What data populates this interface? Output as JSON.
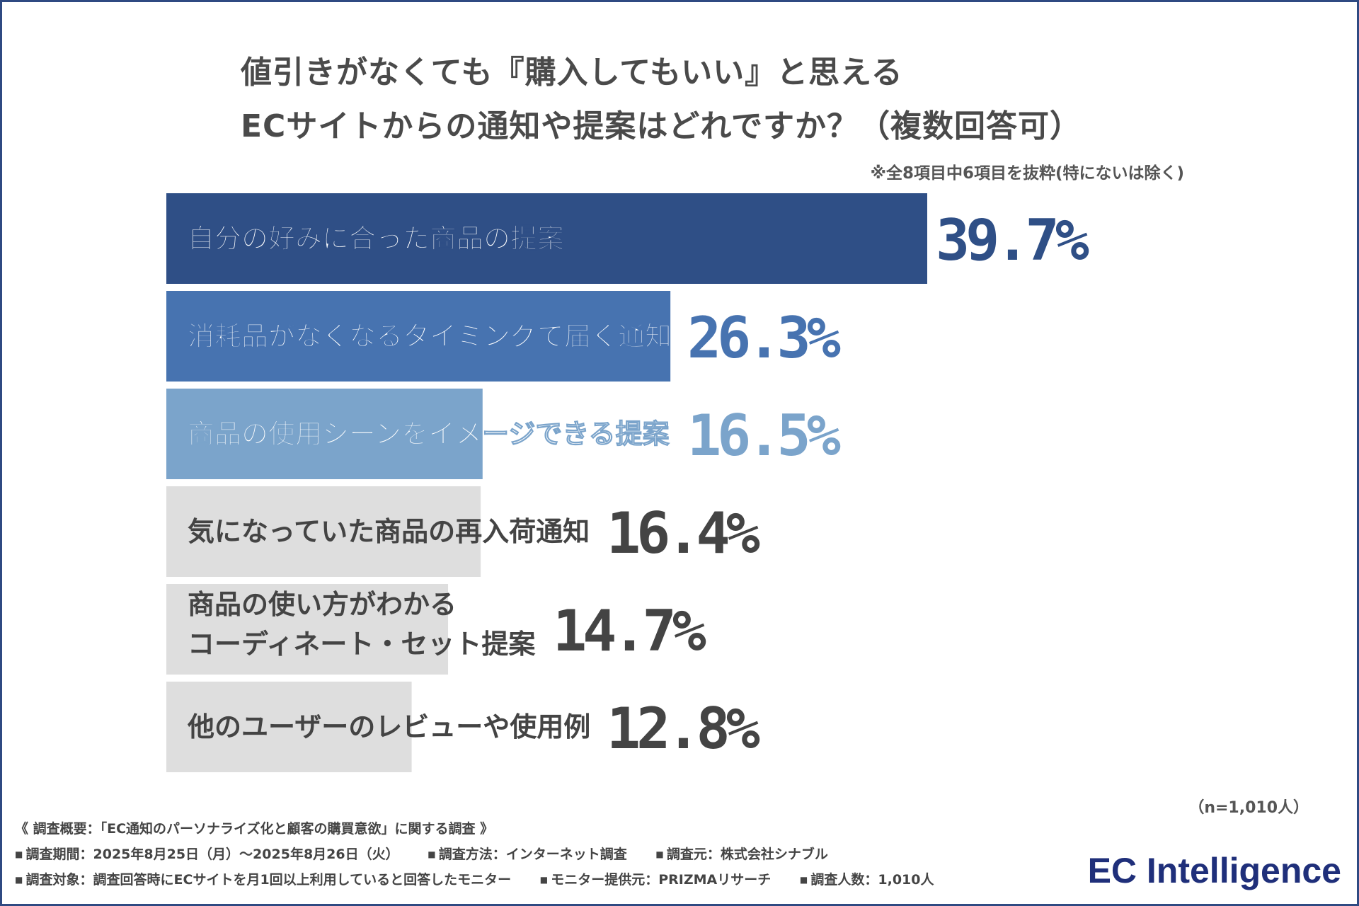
{
  "title_lines": [
    "値引きがなくても『購入してもいい』と思える",
    "ECサイトからの通知や提案はどれですか？（複数回答可）"
  ],
  "subnote": "※全8項目中6項目を抜粋(特にないは除く)",
  "sample_note": "（n=1,010人）",
  "survey": {
    "heading": "《 調査概要：「EC通知のパーソナライズ化と顧客の購買意欲」に関する調査 》",
    "row1": [
      "調査期間：2025年8月25日（月）～2025年8月26日（火）",
      "調査方法：インターネット調査",
      "調査元：株式会社シナブル"
    ],
    "row2": [
      "調査対象：調査回答時にECサイトを月1回以上利用していると回答したモニター",
      "モニター提供元：PRIZMAリサーチ",
      "調査人数：1,010人"
    ]
  },
  "logo": "EC Intelligence",
  "chart_data": {
    "type": "bar",
    "orientation": "horizontal",
    "categories": [
      "自分の好みに合った商品の提案",
      "消耗品がなくなるタイミングで届く通知",
      "商品の使用シーンをイメージできる提案",
      "気になっていた商品の再入荷通知",
      "商品の使い方がわかる\nコーディネート・セット提案",
      "他のユーザーのレビューや使用例"
    ],
    "values": [
      39.7,
      26.3,
      16.5,
      16.4,
      14.7,
      12.8
    ],
    "value_labels": [
      "39.7%",
      "26.3%",
      "16.5%",
      "16.4%",
      "14.7%",
      "12.8%"
    ],
    "unit": "%",
    "colors": [
      "#2f4f86",
      "#4773b0",
      "#7ba4cb",
      "#dedede",
      "#dedede",
      "#dedede"
    ],
    "label_colors": [
      "#ffffff",
      "#ffffff",
      "#ffffff",
      "#444444",
      "#444444",
      "#444444"
    ],
    "value_colors": [
      "#2f4f86",
      "#4773b0",
      "#7ba4cb",
      "#444444",
      "#444444",
      "#444444"
    ],
    "grid": false,
    "legend": "none"
  }
}
